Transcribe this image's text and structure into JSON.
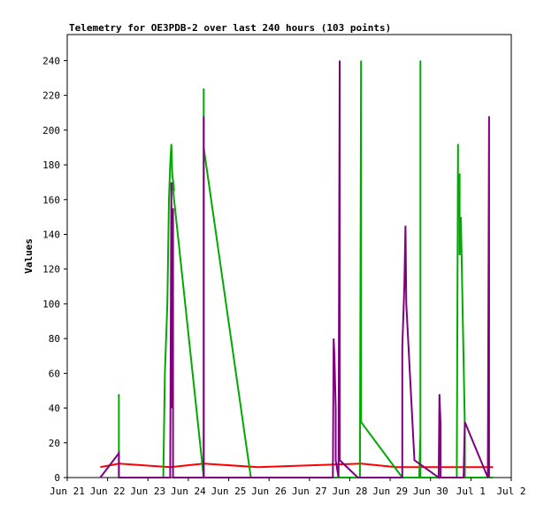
{
  "chart_data": {
    "type": "line",
    "title": "Telemetry for OE3PDB-2 over last 240 hours (103 points)",
    "xlabel": "",
    "ylabel": "Values",
    "ylim": [
      0,
      255
    ],
    "xlim": [
      0,
      11
    ],
    "x_ticks": [
      {
        "label": "Jun 21",
        "value": 0
      },
      {
        "label": "Jun 22",
        "value": 1
      },
      {
        "label": "Jun 23",
        "value": 2
      },
      {
        "label": "Jun 24",
        "value": 3
      },
      {
        "label": "Jun 25",
        "value": 4
      },
      {
        "label": "Jun 26",
        "value": 5
      },
      {
        "label": "Jun 27",
        "value": 6
      },
      {
        "label": "Jun 28",
        "value": 7
      },
      {
        "label": "Jun 29",
        "value": 8
      },
      {
        "label": "Jun 30",
        "value": 9
      },
      {
        "label": "Jul 1",
        "value": 10
      },
      {
        "label": "Jul 2",
        "value": 11
      }
    ],
    "y_ticks": [
      0,
      20,
      40,
      60,
      80,
      100,
      120,
      140,
      160,
      180,
      200,
      220,
      240
    ],
    "grid": false,
    "series": [
      {
        "color": "#ff0000",
        "points": [
          [
            0.82,
            6
          ],
          [
            1.28,
            8
          ],
          [
            2.55,
            6
          ],
          [
            3.38,
            8
          ],
          [
            4.72,
            6
          ],
          [
            7.28,
            8
          ],
          [
            8.15,
            6
          ],
          [
            10.0,
            6
          ],
          [
            10.55,
            6
          ]
        ]
      },
      {
        "color": "#00aa00",
        "points": [
          [
            1.28,
            0
          ],
          [
            1.28,
            48
          ],
          [
            1.28,
            0
          ],
          [
            2.38,
            0
          ],
          [
            2.42,
            60
          ],
          [
            2.48,
            100
          ],
          [
            2.52,
            160
          ],
          [
            2.55,
            180
          ],
          [
            2.58,
            192
          ],
          [
            2.6,
            175
          ],
          [
            2.65,
            165
          ],
          [
            2.6,
            170
          ],
          [
            3.38,
            0
          ],
          [
            3.38,
            224
          ],
          [
            3.38,
            190
          ],
          [
            4.55,
            0
          ],
          [
            7.25,
            0
          ],
          [
            7.28,
            240
          ],
          [
            7.28,
            160
          ],
          [
            7.28,
            32
          ],
          [
            8.3,
            0
          ],
          [
            8.72,
            0
          ],
          [
            8.75,
            25
          ],
          [
            8.75,
            240
          ],
          [
            8.75,
            0
          ],
          [
            9.65,
            0
          ],
          [
            9.68,
            192
          ],
          [
            9.68,
            150
          ],
          [
            9.72,
            175
          ],
          [
            9.72,
            128
          ],
          [
            9.75,
            150
          ],
          [
            9.85,
            30
          ],
          [
            9.85,
            0
          ],
          [
            10.55,
            0
          ]
        ]
      },
      {
        "color": "#7f007f",
        "points": [
          [
            0.82,
            0
          ],
          [
            1.28,
            14
          ],
          [
            1.28,
            0
          ],
          [
            2.55,
            0
          ],
          [
            2.58,
            170
          ],
          [
            2.6,
            40
          ],
          [
            2.62,
            155
          ],
          [
            2.62,
            0
          ],
          [
            3.38,
            0
          ],
          [
            3.38,
            208
          ],
          [
            3.38,
            8
          ],
          [
            3.38,
            0
          ],
          [
            6.58,
            0
          ],
          [
            6.6,
            80
          ],
          [
            6.62,
            70
          ],
          [
            6.65,
            40
          ],
          [
            6.65,
            10
          ],
          [
            6.72,
            0
          ],
          [
            6.75,
            240
          ],
          [
            6.75,
            10
          ],
          [
            7.2,
            0
          ],
          [
            8.3,
            0
          ],
          [
            8.3,
            75
          ],
          [
            8.35,
            110
          ],
          [
            8.38,
            145
          ],
          [
            8.4,
            100
          ],
          [
            8.6,
            10
          ],
          [
            9.2,
            0
          ],
          [
            9.22,
            48
          ],
          [
            9.25,
            30
          ],
          [
            9.25,
            0
          ],
          [
            9.82,
            0
          ],
          [
            9.85,
            32
          ],
          [
            10.42,
            0
          ],
          [
            10.45,
            208
          ],
          [
            10.45,
            0
          ]
        ]
      }
    ]
  }
}
